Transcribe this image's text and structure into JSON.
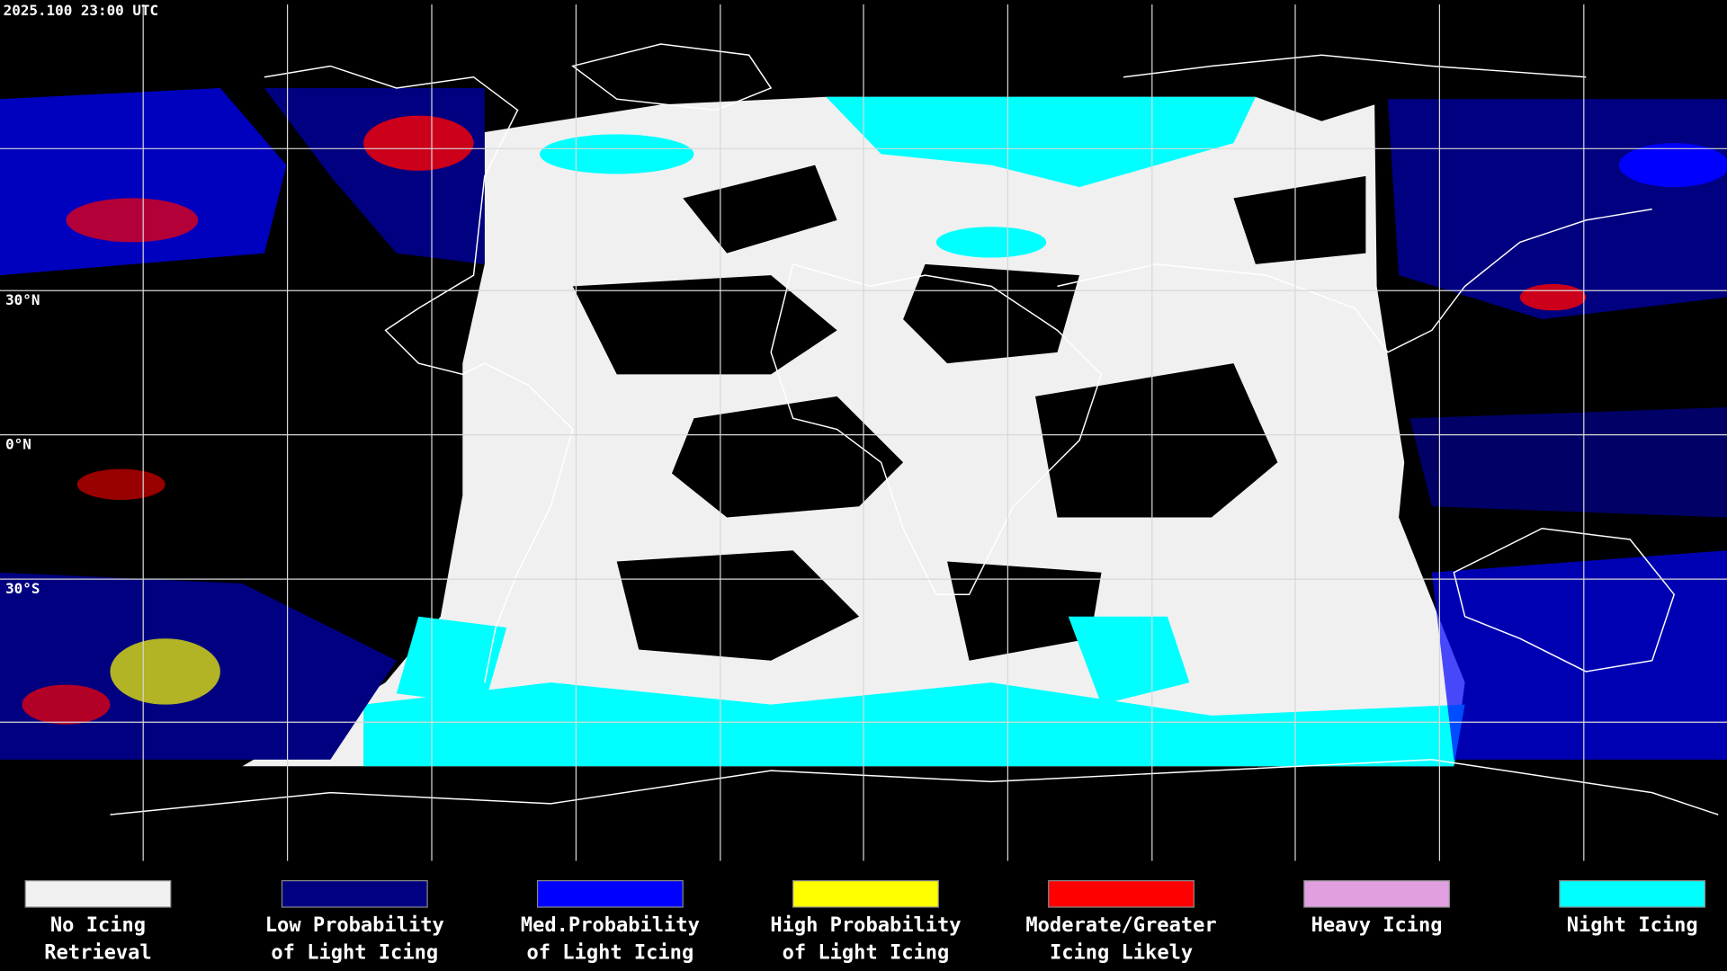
{
  "header": {
    "timestamp": "2025.100 23:00 UTC"
  },
  "map": {
    "latitude_labels": [
      "30°N",
      "0°N",
      "30°S"
    ]
  },
  "legend": [
    {
      "label_lines": [
        "No Icing",
        "Retrieval"
      ],
      "color": "#f0f0f0"
    },
    {
      "label_lines": [
        "Low Probability",
        "of Light Icing"
      ],
      "color": "#000080"
    },
    {
      "label_lines": [
        "Med.Probability",
        "of Light Icing"
      ],
      "color": "#0000ff"
    },
    {
      "label_lines": [
        "High Probability",
        "of Light Icing"
      ],
      "color": "#ffff00"
    },
    {
      "label_lines": [
        "Moderate/Greater",
        "Icing Likely"
      ],
      "color": "#ff0000"
    },
    {
      "label_lines": [
        "Heavy Icing"
      ],
      "color": "#e0a0e0"
    },
    {
      "label_lines": [
        "Night Icing"
      ],
      "color": "#00ffff"
    }
  ]
}
